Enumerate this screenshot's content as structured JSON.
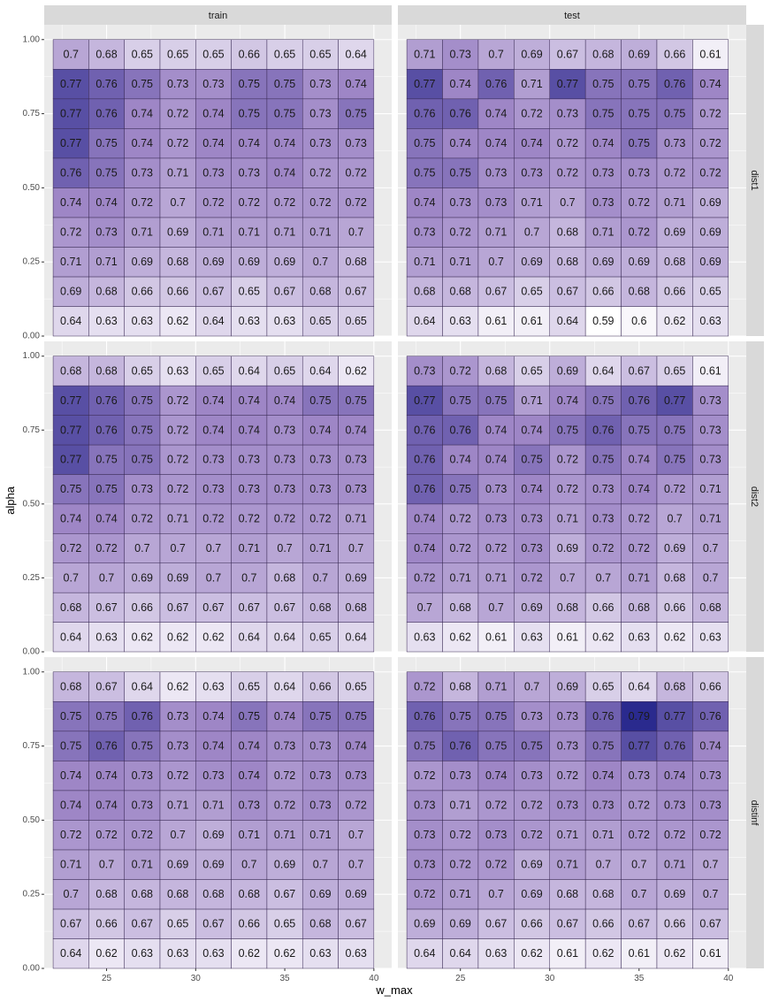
{
  "chart_data": {
    "type": "heatmap",
    "xlabel": "w_max",
    "ylabel": "alpha",
    "col_facets": [
      "train",
      "test"
    ],
    "row_facets": [
      "dist1",
      "dist2",
      "distinf"
    ],
    "x": [
      23,
      25,
      27,
      29,
      31,
      33,
      35,
      37,
      39
    ],
    "y": [
      0.05,
      0.15,
      0.25,
      0.35,
      0.45,
      0.55,
      0.65,
      0.75,
      0.85,
      0.95
    ],
    "x_ticks": [
      25,
      30,
      35,
      40
    ],
    "y_ticks": [
      "0.00",
      "0.25",
      "0.50",
      "0.75",
      "1.00"
    ],
    "xlim": [
      21.5,
      41
    ],
    "ylim": [
      0,
      1.05
    ],
    "color_scale": {
      "min_value": 0.59,
      "max_value": 0.79,
      "low_color": "#ffffff",
      "mid_color": "#9e86c6",
      "high_color": "#2a2a8e"
    },
    "panels": [
      {
        "row": "dist1",
        "col": "train",
        "values": [
          [
            0.64,
            0.63,
            0.63,
            0.62,
            0.64,
            0.63,
            0.63,
            0.65,
            0.65
          ],
          [
            0.69,
            0.68,
            0.66,
            0.66,
            0.67,
            0.65,
            0.67,
            0.68,
            0.67
          ],
          [
            0.71,
            0.71,
            0.69,
            0.68,
            0.69,
            0.69,
            0.69,
            0.7,
            0.68
          ],
          [
            0.72,
            0.73,
            0.71,
            0.69,
            0.71,
            0.71,
            0.71,
            0.71,
            0.7
          ],
          [
            0.74,
            0.74,
            0.72,
            0.7,
            0.72,
            0.72,
            0.72,
            0.72,
            0.72
          ],
          [
            0.76,
            0.75,
            0.73,
            0.71,
            0.73,
            0.73,
            0.74,
            0.72,
            0.72
          ],
          [
            0.77,
            0.75,
            0.74,
            0.72,
            0.74,
            0.74,
            0.74,
            0.73,
            0.73
          ],
          [
            0.77,
            0.76,
            0.74,
            0.72,
            0.74,
            0.75,
            0.75,
            0.73,
            0.75
          ],
          [
            0.77,
            0.76,
            0.75,
            0.73,
            0.73,
            0.75,
            0.75,
            0.73,
            0.74
          ],
          [
            0.7,
            0.68,
            0.65,
            0.65,
            0.65,
            0.66,
            0.65,
            0.65,
            0.64
          ]
        ]
      },
      {
        "row": "dist1",
        "col": "test",
        "values": [
          [
            0.64,
            0.63,
            0.61,
            0.61,
            0.64,
            0.59,
            0.6,
            0.62,
            0.63
          ],
          [
            0.68,
            0.68,
            0.67,
            0.65,
            0.67,
            0.66,
            0.68,
            0.66,
            0.65
          ],
          [
            0.71,
            0.71,
            0.7,
            0.69,
            0.68,
            0.69,
            0.69,
            0.68,
            0.69
          ],
          [
            0.73,
            0.72,
            0.71,
            0.7,
            0.68,
            0.71,
            0.72,
            0.69,
            0.69
          ],
          [
            0.74,
            0.73,
            0.73,
            0.71,
            0.7,
            0.73,
            0.72,
            0.71,
            0.69
          ],
          [
            0.75,
            0.75,
            0.73,
            0.73,
            0.72,
            0.73,
            0.73,
            0.72,
            0.72
          ],
          [
            0.75,
            0.74,
            0.74,
            0.74,
            0.72,
            0.74,
            0.75,
            0.73,
            0.72
          ],
          [
            0.76,
            0.76,
            0.74,
            0.72,
            0.73,
            0.75,
            0.75,
            0.75,
            0.72
          ],
          [
            0.77,
            0.74,
            0.76,
            0.71,
            0.77,
            0.75,
            0.75,
            0.76,
            0.74
          ],
          [
            0.71,
            0.73,
            0.7,
            0.69,
            0.67,
            0.68,
            0.69,
            0.66,
            0.61
          ]
        ]
      },
      {
        "row": "dist2",
        "col": "train",
        "values": [
          [
            0.64,
            0.63,
            0.62,
            0.62,
            0.62,
            0.64,
            0.64,
            0.65,
            0.64
          ],
          [
            0.68,
            0.67,
            0.66,
            0.67,
            0.67,
            0.67,
            0.67,
            0.68,
            0.68
          ],
          [
            0.7,
            0.7,
            0.69,
            0.69,
            0.7,
            0.7,
            0.68,
            0.7,
            0.69
          ],
          [
            0.72,
            0.72,
            0.7,
            0.7,
            0.7,
            0.71,
            0.7,
            0.71,
            0.7
          ],
          [
            0.74,
            0.74,
            0.72,
            0.71,
            0.72,
            0.72,
            0.72,
            0.72,
            0.71
          ],
          [
            0.75,
            0.75,
            0.73,
            0.72,
            0.73,
            0.73,
            0.73,
            0.73,
            0.73
          ],
          [
            0.77,
            0.75,
            0.75,
            0.72,
            0.73,
            0.73,
            0.73,
            0.73,
            0.73
          ],
          [
            0.77,
            0.76,
            0.75,
            0.72,
            0.74,
            0.74,
            0.73,
            0.74,
            0.74
          ],
          [
            0.77,
            0.76,
            0.75,
            0.72,
            0.74,
            0.74,
            0.74,
            0.75,
            0.75
          ],
          [
            0.68,
            0.68,
            0.65,
            0.63,
            0.65,
            0.64,
            0.65,
            0.64,
            0.62
          ]
        ]
      },
      {
        "row": "dist2",
        "col": "test",
        "values": [
          [
            0.63,
            0.62,
            0.61,
            0.63,
            0.61,
            0.62,
            0.63,
            0.62,
            0.63
          ],
          [
            0.7,
            0.68,
            0.7,
            0.69,
            0.68,
            0.66,
            0.68,
            0.66,
            0.68
          ],
          [
            0.72,
            0.71,
            0.71,
            0.72,
            0.7,
            0.7,
            0.71,
            0.68,
            0.7
          ],
          [
            0.74,
            0.72,
            0.72,
            0.73,
            0.69,
            0.72,
            0.72,
            0.69,
            0.7
          ],
          [
            0.74,
            0.72,
            0.73,
            0.73,
            0.71,
            0.73,
            0.72,
            0.7,
            0.71
          ],
          [
            0.76,
            0.75,
            0.73,
            0.74,
            0.72,
            0.73,
            0.74,
            0.72,
            0.71
          ],
          [
            0.76,
            0.74,
            0.74,
            0.75,
            0.72,
            0.75,
            0.74,
            0.75,
            0.73
          ],
          [
            0.76,
            0.76,
            0.74,
            0.74,
            0.75,
            0.76,
            0.75,
            0.75,
            0.73
          ],
          [
            0.77,
            0.75,
            0.75,
            0.71,
            0.74,
            0.75,
            0.76,
            0.77,
            0.73
          ],
          [
            0.73,
            0.72,
            0.68,
            0.65,
            0.69,
            0.64,
            0.67,
            0.65,
            0.61
          ]
        ]
      },
      {
        "row": "distinf",
        "col": "train",
        "values": [
          [
            0.64,
            0.62,
            0.63,
            0.63,
            0.63,
            0.62,
            0.62,
            0.63,
            0.63
          ],
          [
            0.67,
            0.66,
            0.67,
            0.65,
            0.67,
            0.66,
            0.65,
            0.68,
            0.67
          ],
          [
            0.7,
            0.68,
            0.68,
            0.68,
            0.68,
            0.68,
            0.67,
            0.69,
            0.69
          ],
          [
            0.71,
            0.7,
            0.71,
            0.69,
            0.69,
            0.7,
            0.69,
            0.7,
            0.7
          ],
          [
            0.72,
            0.72,
            0.72,
            0.7,
            0.69,
            0.71,
            0.71,
            0.71,
            0.7
          ],
          [
            0.74,
            0.74,
            0.73,
            0.71,
            0.71,
            0.73,
            0.72,
            0.73,
            0.72
          ],
          [
            0.74,
            0.74,
            0.73,
            0.72,
            0.73,
            0.74,
            0.72,
            0.73,
            0.73
          ],
          [
            0.75,
            0.76,
            0.75,
            0.73,
            0.74,
            0.74,
            0.73,
            0.73,
            0.74
          ],
          [
            0.75,
            0.75,
            0.76,
            0.73,
            0.74,
            0.75,
            0.74,
            0.75,
            0.75
          ],
          [
            0.68,
            0.67,
            0.64,
            0.62,
            0.63,
            0.65,
            0.64,
            0.66,
            0.65
          ]
        ]
      },
      {
        "row": "distinf",
        "col": "test",
        "values": [
          [
            0.64,
            0.64,
            0.63,
            0.62,
            0.61,
            0.62,
            0.61,
            0.62,
            0.61
          ],
          [
            0.69,
            0.69,
            0.67,
            0.66,
            0.67,
            0.66,
            0.67,
            0.66,
            0.67
          ],
          [
            0.72,
            0.71,
            0.7,
            0.69,
            0.68,
            0.68,
            0.7,
            0.69,
            0.7
          ],
          [
            0.73,
            0.72,
            0.72,
            0.69,
            0.71,
            0.7,
            0.7,
            0.71,
            0.7
          ],
          [
            0.73,
            0.72,
            0.73,
            0.72,
            0.71,
            0.71,
            0.72,
            0.72,
            0.72
          ],
          [
            0.73,
            0.71,
            0.72,
            0.72,
            0.73,
            0.73,
            0.72,
            0.73,
            0.73
          ],
          [
            0.72,
            0.73,
            0.74,
            0.73,
            0.72,
            0.74,
            0.73,
            0.74,
            0.73
          ],
          [
            0.75,
            0.76,
            0.75,
            0.75,
            0.73,
            0.75,
            0.77,
            0.76,
            0.74
          ],
          [
            0.76,
            0.75,
            0.75,
            0.73,
            0.73,
            0.76,
            0.79,
            0.77,
            0.76
          ],
          [
            0.72,
            0.68,
            0.71,
            0.7,
            0.69,
            0.65,
            0.64,
            0.68,
            0.66
          ]
        ]
      }
    ]
  }
}
